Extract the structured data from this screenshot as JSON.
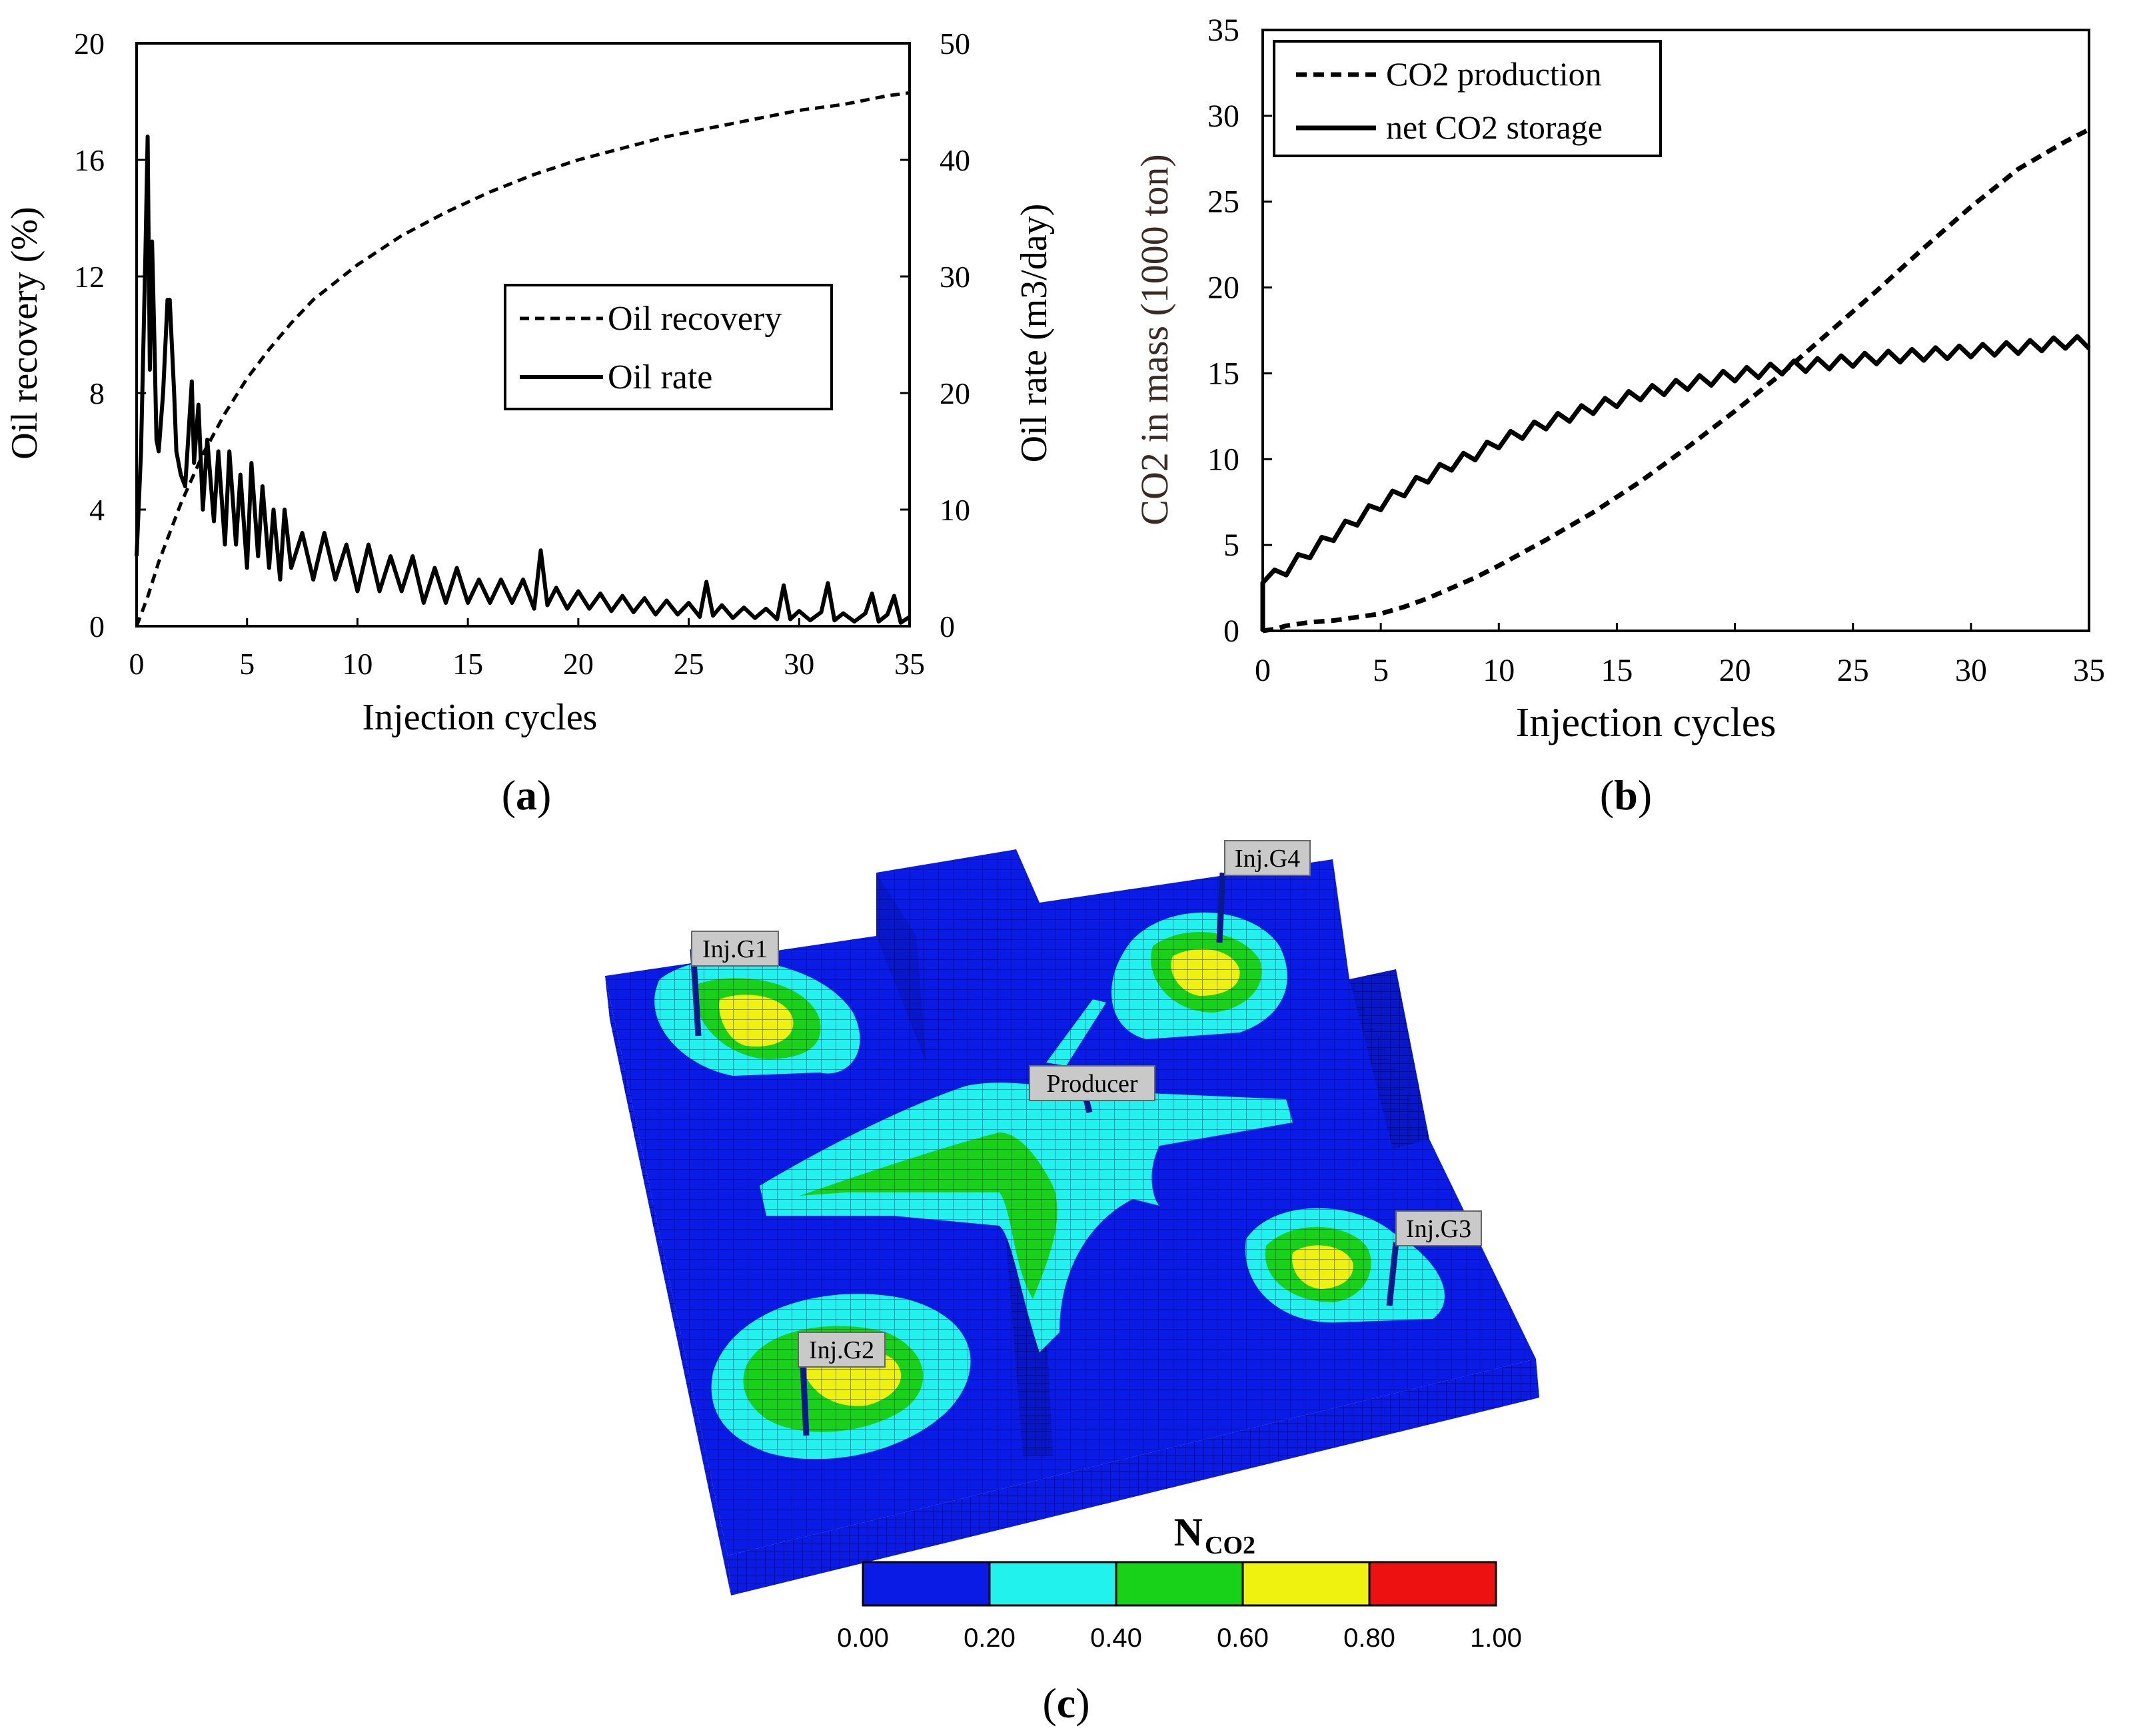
{
  "chart_data": [
    {
      "panel": "(a)",
      "type": "line",
      "xlabel": "Injection cycles",
      "ylabel_left": "Oil recovery (%)",
      "ylabel_right": "Oil rate (m3/day)",
      "xlim": [
        0,
        35
      ],
      "ylim_left": [
        0,
        20
      ],
      "ylim_right": [
        0,
        50
      ],
      "x_ticks": [
        "0",
        "5",
        "10",
        "15",
        "20",
        "25",
        "30",
        "35"
      ],
      "y_ticks_left": [
        "0",
        "4",
        "8",
        "12",
        "16",
        "20"
      ],
      "y_ticks_right": [
        "0",
        "10",
        "20",
        "30",
        "40",
        "50"
      ],
      "legend": [
        "Oil recovery",
        "Oil rate"
      ],
      "legend_position": "center-right",
      "series": [
        {
          "name": "Oil recovery",
          "axis": "left",
          "style": "dashed",
          "x": [
            0,
            0.5,
            1,
            1.5,
            2,
            3,
            4,
            5,
            6,
            7,
            8,
            9,
            10,
            12,
            14,
            16,
            18,
            20,
            22,
            24,
            26,
            28,
            30,
            32,
            34,
            35
          ],
          "y": [
            0,
            1.0,
            2.2,
            3.2,
            4.2,
            5.9,
            7.3,
            8.5,
            9.5,
            10.4,
            11.2,
            11.8,
            12.4,
            13.4,
            14.2,
            14.9,
            15.5,
            16.0,
            16.4,
            16.8,
            17.1,
            17.4,
            17.7,
            17.9,
            18.2,
            18.3
          ]
        },
        {
          "name": "Oil rate",
          "axis": "right",
          "style": "solid",
          "x": [
            0,
            0.2,
            0.4,
            0.5,
            0.6,
            0.7,
            0.8,
            0.9,
            1.0,
            1.2,
            1.4,
            1.5,
            1.6,
            1.7,
            1.8,
            2.0,
            2.2,
            2.5,
            2.6,
            2.8,
            3.0,
            3.2,
            3.5,
            3.7,
            4.0,
            4.2,
            4.5,
            4.7,
            5.0,
            5.2,
            5.5,
            5.7,
            6.0,
            6.2,
            6.5,
            6.7,
            7.0,
            7.5,
            8.0,
            8.5,
            9.0,
            9.5,
            10.0,
            10.5,
            11.0,
            11.5,
            12.0,
            12.5,
            13.0,
            13.5,
            14.0,
            14.5,
            15.0,
            15.5,
            16.0,
            16.5,
            17.0,
            17.5,
            18.0,
            18.3,
            18.6,
            19.0,
            19.5,
            20.0,
            20.5,
            21.0,
            21.5,
            22.0,
            22.5,
            23.0,
            23.5,
            24.0,
            24.5,
            25.0,
            25.5,
            25.8,
            26.1,
            26.5,
            27.0,
            27.5,
            28.0,
            28.5,
            29.0,
            29.3,
            29.6,
            30.0,
            30.5,
            31.0,
            31.3,
            31.6,
            32.0,
            32.5,
            33.0,
            33.3,
            33.6,
            34.0,
            34.3,
            34.6,
            35.0
          ],
          "y": [
            6,
            15,
            32,
            42,
            22,
            33,
            25,
            16,
            15,
            20,
            28,
            28,
            24,
            20,
            15,
            13,
            12,
            21,
            14,
            19,
            10,
            16,
            9,
            15,
            7,
            15,
            7,
            13,
            5,
            14,
            6,
            12,
            5,
            10,
            4,
            10,
            5,
            8,
            4,
            8,
            4,
            7,
            3,
            7,
            3,
            6,
            3,
            6,
            2,
            5,
            2,
            5,
            2,
            4,
            2,
            4,
            2,
            4,
            1.5,
            6.5,
            1.8,
            3.3,
            1.5,
            3,
            1.5,
            2.8,
            1.3,
            2.6,
            1.2,
            2.4,
            1,
            2.2,
            1,
            2,
            0.8,
            3.8,
            0.9,
            1.8,
            0.7,
            1.6,
            0.7,
            1.5,
            0.6,
            3.5,
            0.6,
            1.3,
            0.5,
            1.2,
            3.7,
            0.5,
            1.1,
            0.4,
            1.1,
            2.8,
            0.4,
            1.0,
            2.6,
            0.3,
            0.8
          ]
        }
      ]
    },
    {
      "panel": "(b)",
      "type": "line",
      "xlabel": "Injection cycles",
      "ylabel": "CO2 in mass  (1000 ton)",
      "xlim": [
        0,
        35
      ],
      "ylim": [
        0,
        35
      ],
      "x_ticks": [
        "0",
        "5",
        "10",
        "15",
        "20",
        "25",
        "30",
        "35"
      ],
      "y_ticks": [
        "0",
        "5",
        "10",
        "15",
        "20",
        "25",
        "30",
        "35"
      ],
      "legend": [
        "CO2 production",
        "net CO2 storage"
      ],
      "legend_position": "top-left",
      "series": [
        {
          "name": "CO2 production",
          "style": "dashed",
          "x": [
            0,
            0.5,
            1,
            2,
            3,
            4,
            5,
            6,
            7,
            8,
            9,
            10,
            12,
            14,
            16,
            18,
            20,
            22,
            24,
            26,
            28,
            30,
            32,
            34,
            35
          ],
          "y": [
            0,
            0.1,
            0.3,
            0.5,
            0.6,
            0.8,
            1.0,
            1.4,
            1.9,
            2.5,
            3.1,
            3.8,
            5.3,
            6.9,
            8.7,
            10.7,
            12.8,
            15.0,
            17.4,
            19.8,
            22.3,
            24.7,
            26.9,
            28.5,
            29.2
          ]
        },
        {
          "name": "net CO2 storage",
          "style": "solid",
          "oscillating": true,
          "x": [
            0,
            1,
            2,
            3,
            4,
            5,
            6,
            7,
            8,
            9,
            10,
            12,
            14,
            16,
            18,
            20,
            22,
            24,
            26,
            28,
            30,
            32,
            34,
            35
          ],
          "y": [
            2.8,
            3.6,
            4.6,
            5.6,
            6.5,
            7.4,
            8.2,
            9.0,
            9.7,
            10.3,
            11.0,
            12.1,
            13.0,
            13.8,
            14.4,
            14.9,
            15.3,
            15.6,
            15.9,
            16.1,
            16.3,
            16.5,
            16.8,
            16.8
          ]
        }
      ]
    },
    {
      "panel": "(c)",
      "type": "heatmap",
      "colorbar_label": "N",
      "colorbar_subscript": "CO2",
      "colorbar_ticks": [
        "0.00",
        "0.20",
        "0.40",
        "0.60",
        "0.80",
        "1.00"
      ],
      "colorbar_colors": [
        "#0a1be6",
        "#22f2ee",
        "#18d21a",
        "#eef20e",
        "#ee1111"
      ],
      "well_labels": [
        "Inj.G1",
        "Inj.G4",
        "Producer",
        "Inj.G3",
        "Inj.G2"
      ]
    }
  ],
  "panel_labels": {
    "a": "a",
    "b": "b",
    "c": "c"
  }
}
